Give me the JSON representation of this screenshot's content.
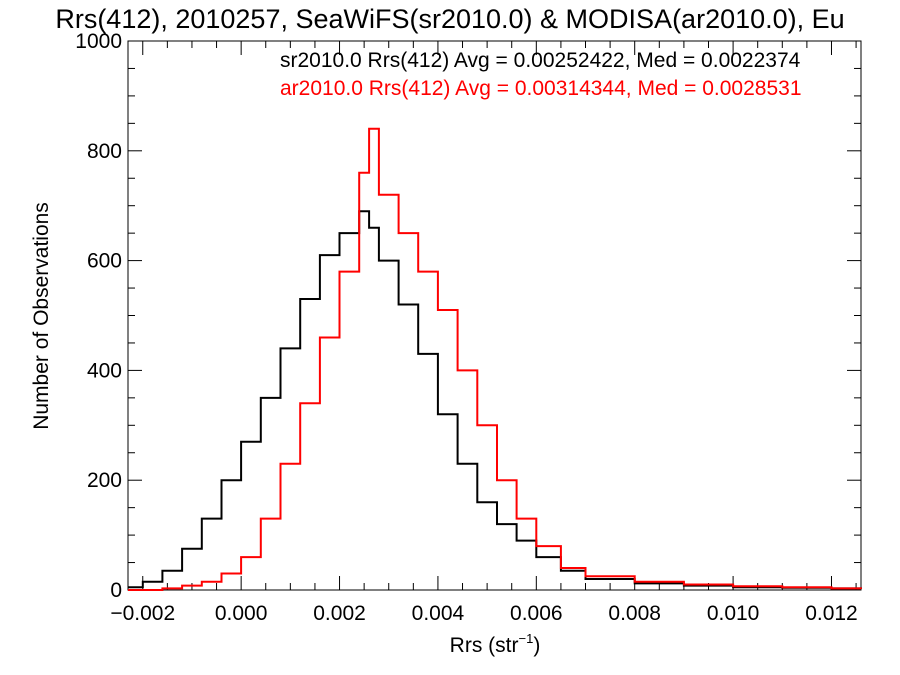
{
  "chart_data": {
    "type": "line",
    "title": "Rrs(412), 2010257, SeaWiFS(sr2010.0) & MODISA(ar2010.0), Eu",
    "xlabel": "Rrs (str",
    "xlabel_sup": "−1",
    "xlabel_close": ")",
    "ylabel": "Number of Observations",
    "xlim": [
      -0.0023,
      0.0126
    ],
    "ylim": [
      0,
      1000
    ],
    "grid": false,
    "legend_placement": "top-right",
    "x_ticks": [
      {
        "value": -0.002,
        "label": "−0.002"
      },
      {
        "value": 0.0,
        "label": "0.000"
      },
      {
        "value": 0.002,
        "label": "0.002"
      },
      {
        "value": 0.004,
        "label": "0.004"
      },
      {
        "value": 0.006,
        "label": "0.006"
      },
      {
        "value": 0.008,
        "label": "0.008"
      },
      {
        "value": 0.01,
        "label": "0.010"
      },
      {
        "value": 0.012,
        "label": "0.012"
      }
    ],
    "y_ticks": [
      {
        "value": 0,
        "label": "0"
      },
      {
        "value": 200,
        "label": "200"
      },
      {
        "value": 400,
        "label": "400"
      },
      {
        "value": 600,
        "label": "600"
      },
      {
        "value": 800,
        "label": "800"
      },
      {
        "value": 1000,
        "label": "1000"
      }
    ],
    "series": [
      {
        "name": "sr2010.0 Rrs(412) Avg = 0.00252422, Med = 0.0022374",
        "color": "#000000",
        "x": [
          -0.0023,
          -0.002,
          -0.0016,
          -0.0012,
          -0.0008,
          -0.0004,
          0.0,
          0.0004,
          0.0008,
          0.0012,
          0.0016,
          0.002,
          0.0024,
          0.0026,
          0.0028,
          0.0032,
          0.0036,
          0.004,
          0.0044,
          0.0048,
          0.0052,
          0.0056,
          0.006,
          0.0065,
          0.007,
          0.008,
          0.009,
          0.01,
          0.011,
          0.012,
          0.0126
        ],
        "y": [
          5,
          15,
          35,
          75,
          130,
          200,
          270,
          350,
          440,
          530,
          610,
          650,
          690,
          660,
          600,
          520,
          430,
          320,
          230,
          160,
          120,
          90,
          60,
          35,
          20,
          12,
          8,
          5,
          4,
          3,
          2
        ]
      },
      {
        "name": "ar2010.0 Rrs(412) Avg = 0.00314344, Med = 0.0028531",
        "color": "#ff0000",
        "x": [
          -0.0023,
          -0.002,
          -0.0016,
          -0.0012,
          -0.0008,
          -0.0004,
          0.0,
          0.0004,
          0.0008,
          0.0012,
          0.0016,
          0.002,
          0.0024,
          0.0026,
          0.0028,
          0.0032,
          0.0036,
          0.004,
          0.0044,
          0.0048,
          0.0052,
          0.0056,
          0.006,
          0.0065,
          0.007,
          0.008,
          0.009,
          0.01,
          0.011,
          0.012,
          0.0126
        ],
        "y": [
          0,
          0,
          3,
          8,
          15,
          30,
          60,
          130,
          230,
          340,
          460,
          580,
          760,
          840,
          720,
          650,
          580,
          510,
          400,
          300,
          200,
          130,
          80,
          40,
          25,
          15,
          10,
          7,
          5,
          3,
          2
        ]
      }
    ]
  }
}
